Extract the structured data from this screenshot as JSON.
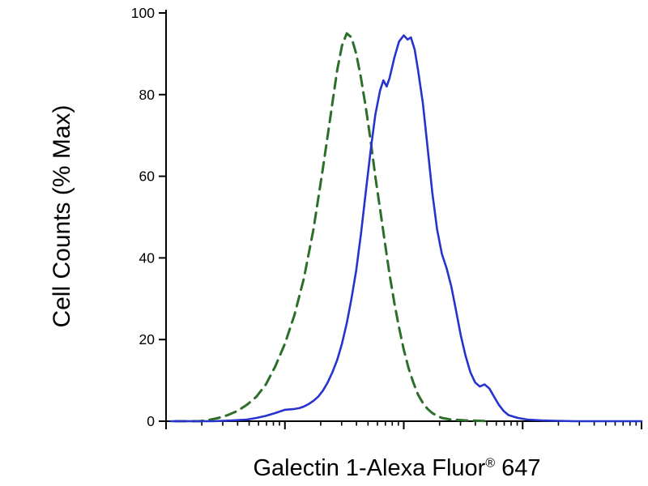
{
  "labels": {
    "x_main": "Galectin 1-Alexa Fluor",
    "x_sup": "®",
    "x_suffix": " 647"
  },
  "chart_data": {
    "type": "line",
    "title": "",
    "xlabel": "Galectin 1-Alexa Fluor® 647",
    "ylabel": "Cell Counts (% Max)",
    "x_axis_note": "fluorescence intensity, log scale, 4 decades, no numeric tick labels",
    "ylim": [
      0,
      100
    ],
    "y_ticks": [
      0,
      20,
      40,
      60,
      80,
      100
    ],
    "x_major_ticks_rel": [
      0,
      25,
      50,
      75,
      100
    ],
    "axis_color": "#000000",
    "series": [
      {
        "id": "dashed-green-curve",
        "color": "#2b6f2b",
        "style": "dashed",
        "width": 3,
        "dash": "13 8",
        "points": [
          [
            2,
            0
          ],
          [
            7,
            0
          ],
          [
            9,
            0.3
          ],
          [
            11,
            0.8
          ],
          [
            13,
            1.5
          ],
          [
            15,
            2.5
          ],
          [
            17,
            4
          ],
          [
            19,
            6
          ],
          [
            21,
            9
          ],
          [
            23,
            13.5
          ],
          [
            25,
            19
          ],
          [
            27,
            26
          ],
          [
            29,
            35
          ],
          [
            31,
            47
          ],
          [
            33,
            62
          ],
          [
            34,
            70
          ],
          [
            35,
            78
          ],
          [
            36,
            86
          ],
          [
            37,
            92
          ],
          [
            38,
            95
          ],
          [
            39,
            94
          ],
          [
            40,
            90
          ],
          [
            41,
            84
          ],
          [
            42,
            77
          ],
          [
            43,
            69
          ],
          [
            44,
            60
          ],
          [
            45,
            52
          ],
          [
            46,
            44
          ],
          [
            47,
            36
          ],
          [
            48,
            29
          ],
          [
            49,
            23
          ],
          [
            50,
            17.5
          ],
          [
            51,
            13
          ],
          [
            52,
            9.5
          ],
          [
            53,
            6.5
          ],
          [
            54,
            4.5
          ],
          [
            55,
            3
          ],
          [
            56,
            2
          ],
          [
            57,
            1.3
          ],
          [
            58,
            0.8
          ],
          [
            60,
            0.4
          ],
          [
            63,
            0.2
          ],
          [
            66,
            0.1
          ],
          [
            68,
            0
          ]
        ]
      },
      {
        "id": "solid-blue-curve",
        "color": "#2633cc",
        "style": "solid",
        "width": 2.6,
        "dash": null,
        "points": [
          [
            1,
            0
          ],
          [
            10,
            0
          ],
          [
            14,
            0.2
          ],
          [
            17,
            0.4
          ],
          [
            19,
            0.8
          ],
          [
            21,
            1.3
          ],
          [
            23,
            2
          ],
          [
            25,
            2.8
          ],
          [
            27,
            3
          ],
          [
            28,
            3.2
          ],
          [
            29,
            3.6
          ],
          [
            30,
            4.2
          ],
          [
            31,
            5
          ],
          [
            32,
            6
          ],
          [
            33,
            7.5
          ],
          [
            34,
            9.5
          ],
          [
            35,
            12
          ],
          [
            36,
            15
          ],
          [
            37,
            19
          ],
          [
            38,
            24
          ],
          [
            39,
            30
          ],
          [
            40,
            37
          ],
          [
            41,
            46
          ],
          [
            42,
            56
          ],
          [
            43,
            66
          ],
          [
            44,
            75
          ],
          [
            45,
            81
          ],
          [
            45.7,
            83.5
          ],
          [
            46.4,
            82
          ],
          [
            47,
            84
          ],
          [
            48,
            89
          ],
          [
            49,
            93
          ],
          [
            50,
            94.5
          ],
          [
            50.8,
            93.5
          ],
          [
            51.5,
            94
          ],
          [
            52.3,
            91
          ],
          [
            53,
            86
          ],
          [
            54,
            78
          ],
          [
            55,
            67
          ],
          [
            56,
            56
          ],
          [
            57,
            47
          ],
          [
            58,
            41
          ],
          [
            59,
            37.5
          ],
          [
            60,
            33
          ],
          [
            61,
            27
          ],
          [
            62,
            21
          ],
          [
            63,
            16
          ],
          [
            64,
            12
          ],
          [
            65,
            9.5
          ],
          [
            66,
            8.5
          ],
          [
            67,
            9
          ],
          [
            68,
            8
          ],
          [
            69,
            6
          ],
          [
            70,
            4
          ],
          [
            71,
            2.5
          ],
          [
            72,
            1.5
          ],
          [
            74,
            0.8
          ],
          [
            76,
            0.4
          ],
          [
            79,
            0.2
          ],
          [
            82,
            0.1
          ],
          [
            86,
            0
          ],
          [
            100,
            0
          ]
        ]
      }
    ]
  }
}
